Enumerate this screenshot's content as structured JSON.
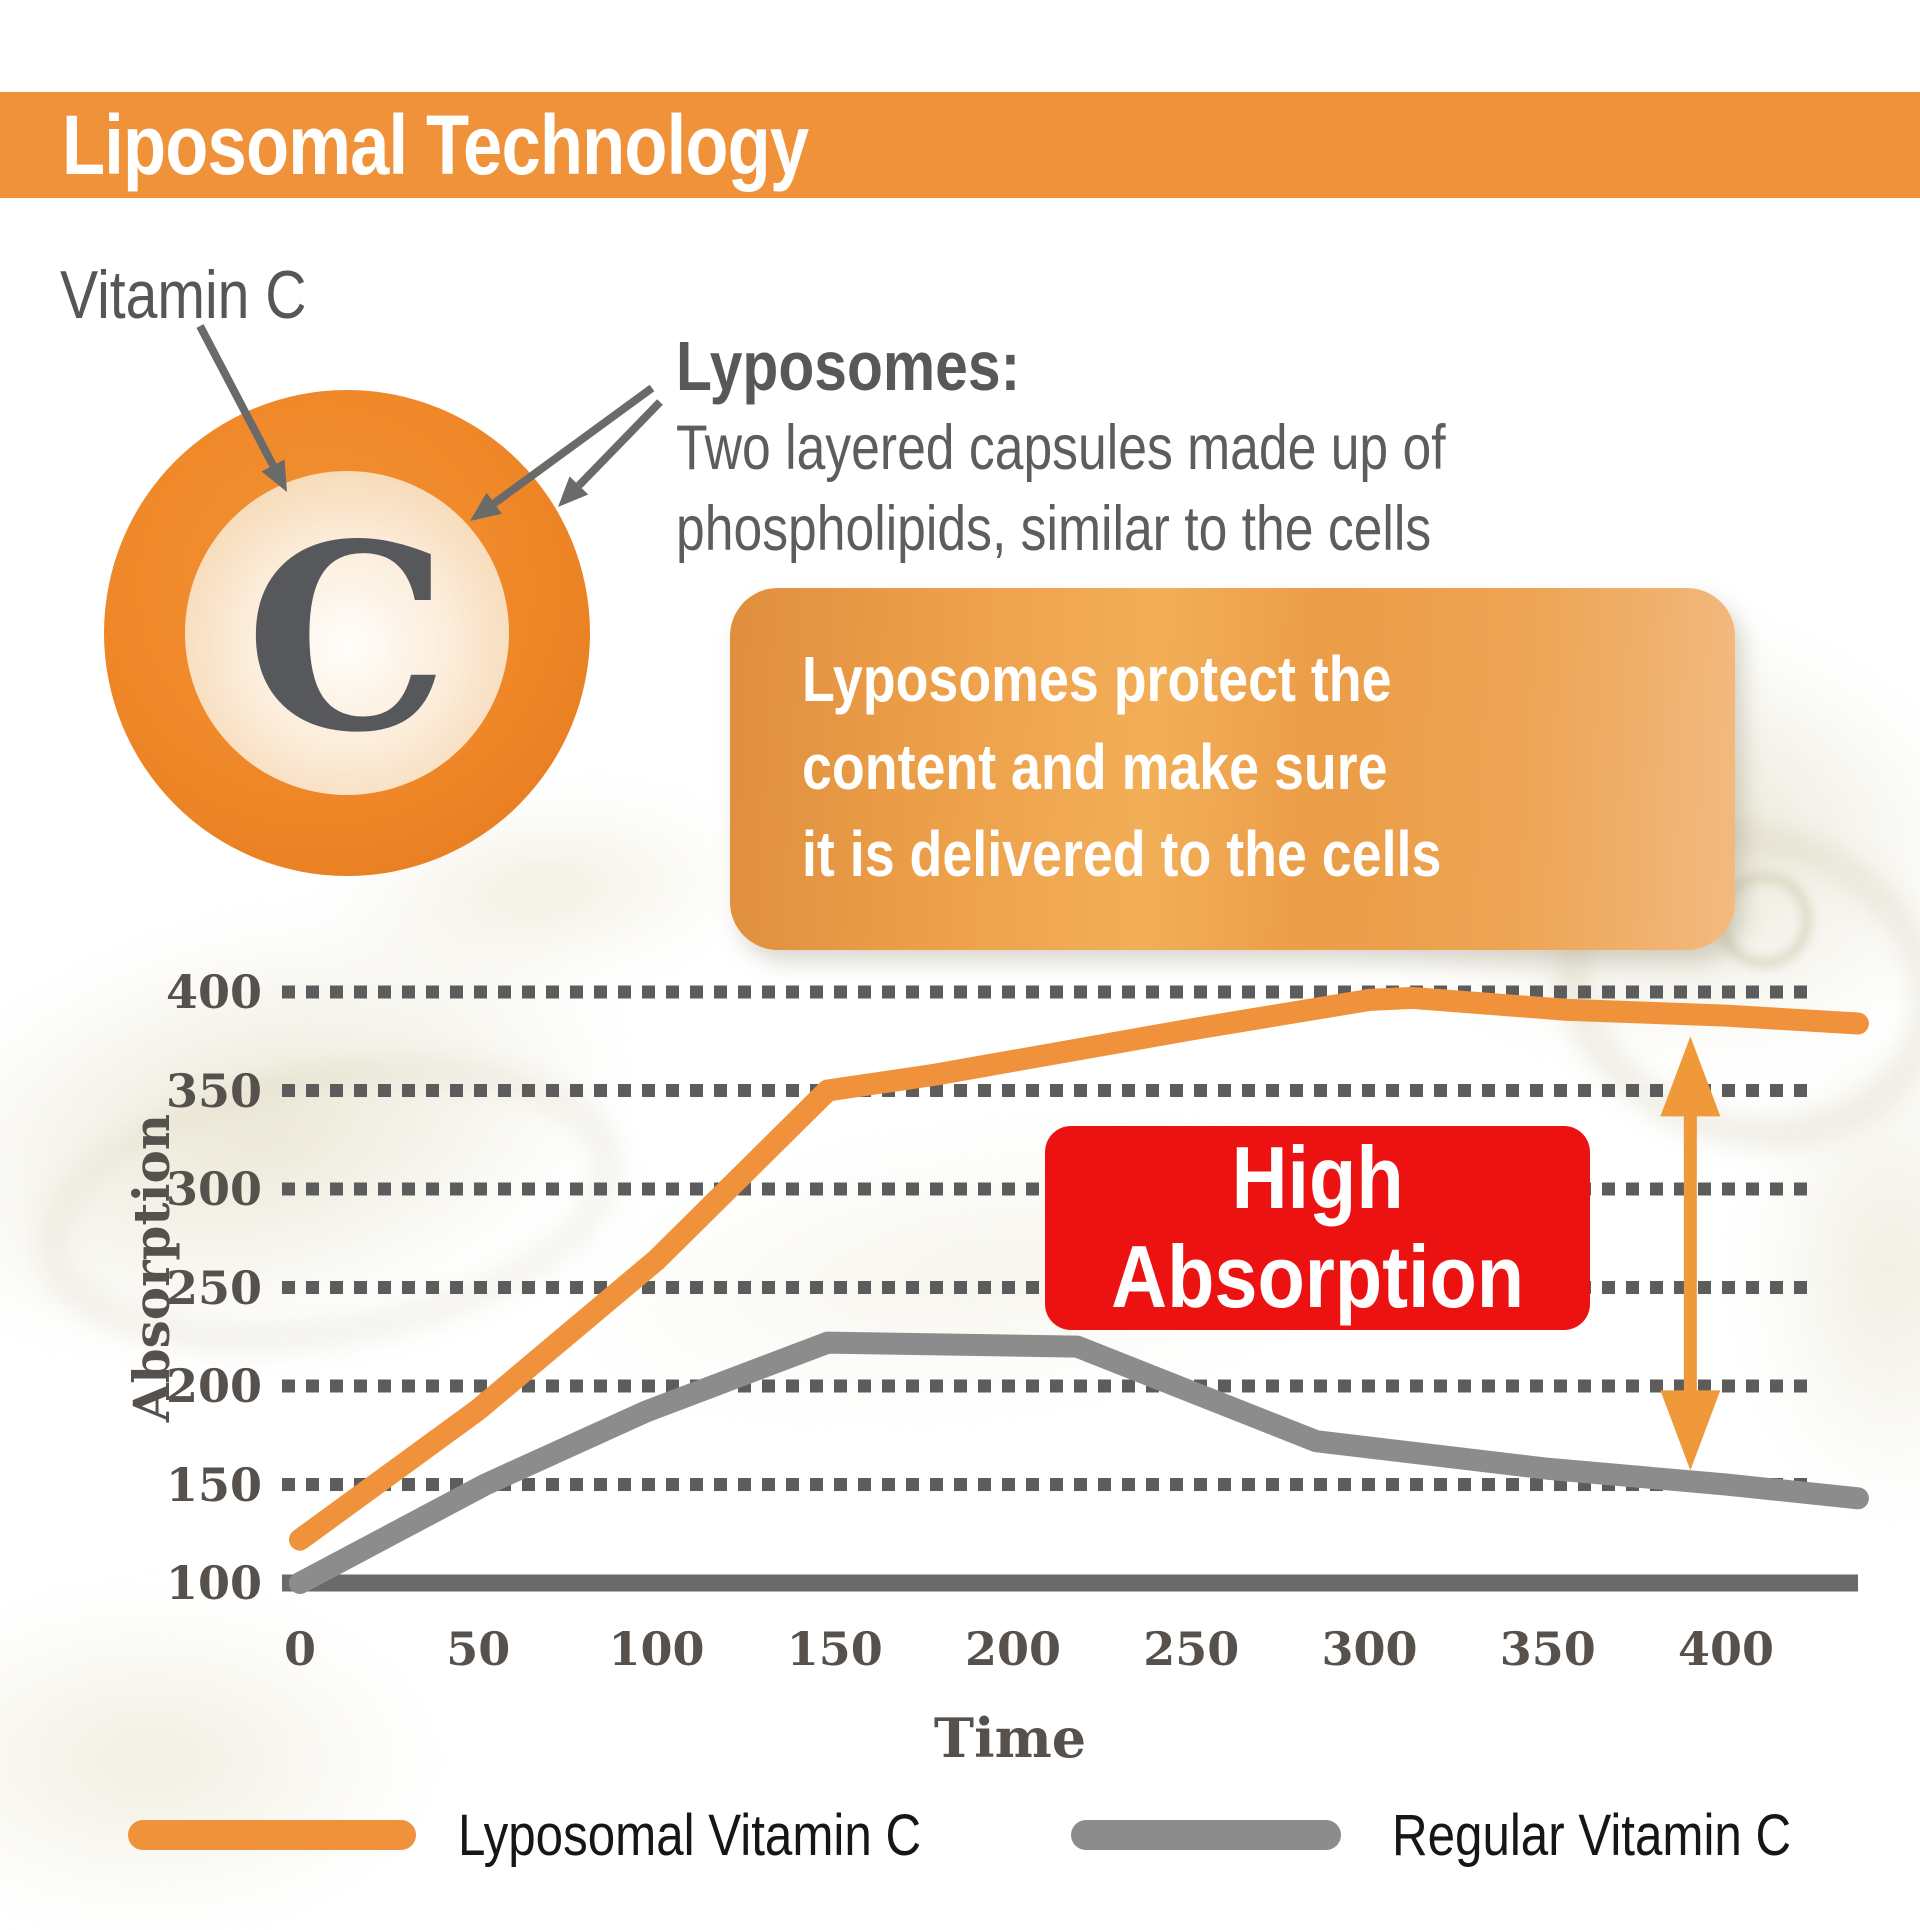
{
  "header": {
    "title": "Liposomal Technology",
    "bg_color": "#EF9239"
  },
  "diagram": {
    "vitamin_label": "Vitamin C",
    "capsule_letter": "C",
    "liposome_heading": "Lyposomes:",
    "liposome_desc_line1": "Two layered capsules made up of",
    "liposome_desc_line2": "phospholipids, similar to the cells",
    "info_box_line1": "Lyposomes protect the",
    "info_box_line2": "content and make sure",
    "info_box_line3": "it is delivered to the cells"
  },
  "chart_data": {
    "type": "line",
    "xlabel": "Time",
    "ylabel": "Absorption",
    "x_ticks": [
      0,
      50,
      100,
      150,
      200,
      250,
      300,
      350,
      400
    ],
    "y_ticks": [
      100,
      150,
      200,
      250,
      300,
      350,
      400
    ],
    "xlim": [
      0,
      437
    ],
    "ylim": [
      100,
      400
    ],
    "grid": "horizontal dotted lines at y=150..400, solid baseline at y=100",
    "legend_position": "bottom",
    "annotation": {
      "line1": "High",
      "line2": "Absorption",
      "bg_color": "#EC1212",
      "text_color": "#ffffff"
    },
    "range_arrow": {
      "at_x": 390,
      "between": [
        "Lyposomal Vitamin C",
        "Regular Vitamin C"
      ],
      "color": "#F0993B"
    },
    "series": [
      {
        "name": "Lyposomal Vitamin C",
        "color": "#F0923B",
        "points": [
          [
            0,
            122
          ],
          [
            50,
            188
          ],
          [
            100,
            264
          ],
          [
            148,
            350
          ],
          [
            178,
            358
          ],
          [
            250,
            381
          ],
          [
            300,
            396
          ],
          [
            312,
            397
          ],
          [
            355,
            391
          ],
          [
            400,
            388
          ],
          [
            437,
            384
          ]
        ]
      },
      {
        "name": "Regular Vitamin C",
        "color": "#8C8C8C",
        "points": [
          [
            0,
            100
          ],
          [
            52,
            150
          ],
          [
            97,
            187
          ],
          [
            148,
            222
          ],
          [
            218,
            220
          ],
          [
            285,
            172
          ],
          [
            350,
            158
          ],
          [
            400,
            150
          ],
          [
            437,
            143
          ]
        ]
      }
    ]
  },
  "legend": [
    {
      "label": "Lyposomal Vitamin C",
      "color": "#F0923B"
    },
    {
      "label": "Regular Vitamin C",
      "color": "#8C8C8C"
    }
  ],
  "colors": {
    "grid_dots": "#5C5C5C",
    "baseline": "#6A6A6A",
    "axis_text": "#56514C",
    "annotation_arrows": "#6A6A6A"
  }
}
